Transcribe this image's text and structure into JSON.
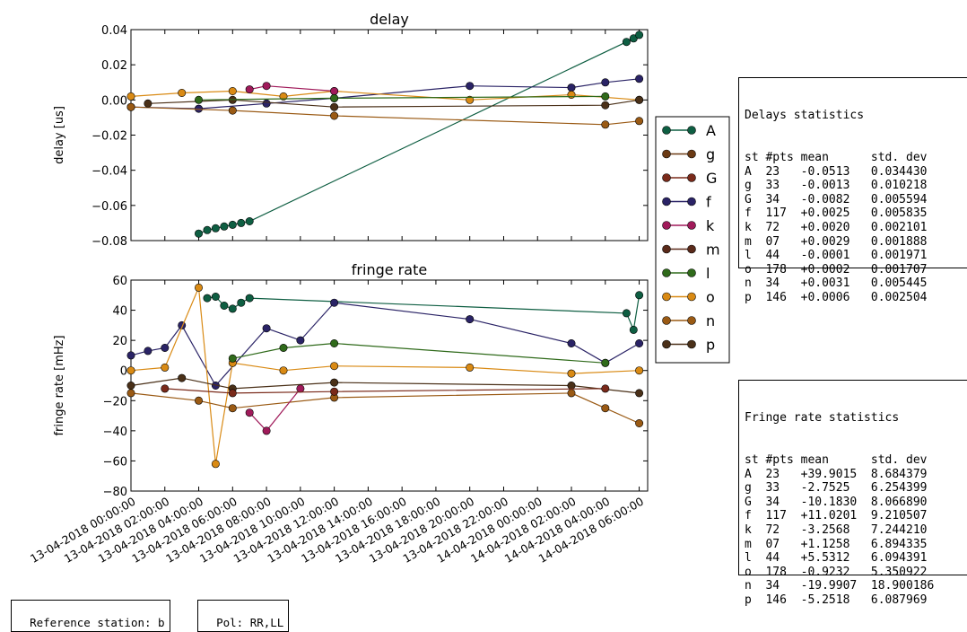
{
  "colors": {
    "A": "#0e5e42",
    "g": "#6b3a14",
    "G": "#7a2a1a",
    "f": "#2a2366",
    "k": "#a01a5a",
    "m": "#5a2a1a",
    "l": "#2f6a1a",
    "o": "#d98a14",
    "n": "#9a5a14",
    "p": "#4a3018"
  },
  "chart_data": [
    {
      "type": "line",
      "title": "delay",
      "ylabel": "delay [us]",
      "ylim": [
        -0.08,
        0.04
      ],
      "yticks": [
        "0.04",
        "0.02",
        "0.00",
        "−0.02",
        "−0.04",
        "−0.06",
        "−0.08"
      ],
      "series": [
        {
          "name": "A",
          "x": [
            "13-04-2018 04:00",
            "13-04-2018 04:30",
            "13-04-2018 05:00",
            "13-04-2018 05:30",
            "13-04-2018 06:00",
            "13-04-2018 06:30",
            "13-04-2018 07:00",
            "14-04-2018 05:15",
            "14-04-2018 05:40",
            "14-04-2018 06:00"
          ],
          "y": [
            -0.076,
            -0.074,
            -0.073,
            -0.072,
            -0.071,
            -0.07,
            -0.069,
            0.033,
            0.035,
            0.037
          ]
        },
        {
          "name": "f",
          "x": [
            "13-04-2018 00:00",
            "13-04-2018 04:00",
            "13-04-2018 08:00",
            "13-04-2018 12:00",
            "13-04-2018 20:00",
            "14-04-2018 02:00",
            "14-04-2018 04:00",
            "14-04-2018 06:00"
          ],
          "y": [
            -0.004,
            -0.005,
            -0.002,
            0.001,
            0.008,
            0.007,
            0.01,
            0.012
          ]
        },
        {
          "name": "o",
          "x": [
            "13-04-2018 00:00",
            "13-04-2018 03:00",
            "13-04-2018 06:00",
            "13-04-2018 09:00",
            "13-04-2018 12:00",
            "13-04-2018 20:00",
            "14-04-2018 02:00",
            "14-04-2018 06:00"
          ],
          "y": [
            0.002,
            0.004,
            0.005,
            0.002,
            0.005,
            0.0,
            0.003,
            0.0
          ]
        },
        {
          "name": "n",
          "x": [
            "13-04-2018 00:00",
            "13-04-2018 06:00",
            "13-04-2018 12:00",
            "14-04-2018 04:00",
            "14-04-2018 06:00"
          ],
          "y": [
            -0.004,
            -0.006,
            -0.009,
            -0.014,
            -0.012
          ]
        },
        {
          "name": "p",
          "x": [
            "13-04-2018 01:00",
            "13-04-2018 06:00",
            "13-04-2018 12:00",
            "14-04-2018 04:00",
            "14-04-2018 06:00"
          ],
          "y": [
            -0.002,
            0.0,
            -0.004,
            -0.003,
            0.0
          ]
        },
        {
          "name": "k",
          "x": [
            "13-04-2018 07:00",
            "13-04-2018 08:00",
            "13-04-2018 12:00"
          ],
          "y": [
            0.006,
            0.008,
            0.005
          ]
        },
        {
          "name": "l",
          "x": [
            "13-04-2018 04:00",
            "13-04-2018 12:00",
            "14-04-2018 04:00"
          ],
          "y": [
            0.0,
            0.001,
            0.002
          ]
        }
      ]
    },
    {
      "type": "line",
      "title": "fringe rate",
      "ylabel": "fringe rate [mHz]",
      "ylim": [
        -80,
        60
      ],
      "yticks": [
        "60",
        "40",
        "20",
        "0",
        "−20",
        "−40",
        "−60",
        "−80"
      ],
      "series": [
        {
          "name": "A",
          "x": [
            "13-04-2018 04:30",
            "13-04-2018 05:00",
            "13-04-2018 05:30",
            "13-04-2018 06:00",
            "13-04-2018 06:30",
            "13-04-2018 07:00",
            "14-04-2018 05:15",
            "14-04-2018 05:40",
            "14-04-2018 06:00"
          ],
          "y": [
            48,
            49,
            43,
            41,
            45,
            48,
            38,
            27,
            50
          ]
        },
        {
          "name": "f",
          "x": [
            "13-04-2018 00:00",
            "13-04-2018 01:00",
            "13-04-2018 02:00",
            "13-04-2018 03:00",
            "13-04-2018 05:00",
            "13-04-2018 08:00",
            "13-04-2018 10:00",
            "13-04-2018 12:00",
            "13-04-2018 20:00",
            "14-04-2018 02:00",
            "14-04-2018 04:00",
            "14-04-2018 06:00"
          ],
          "y": [
            10,
            13,
            15,
            30,
            -10,
            28,
            20,
            45,
            34,
            18,
            5,
            18
          ]
        },
        {
          "name": "o",
          "x": [
            "13-04-2018 00:00",
            "13-04-2018 02:00",
            "13-04-2018 04:00",
            "13-04-2018 05:00",
            "13-04-2018 06:00",
            "13-04-2018 09:00",
            "13-04-2018 12:00",
            "13-04-2018 20:00",
            "14-04-2018 02:00",
            "14-04-2018 06:00"
          ],
          "y": [
            0,
            2,
            55,
            -62,
            5,
            0,
            3,
            2,
            -2,
            0
          ]
        },
        {
          "name": "n",
          "x": [
            "13-04-2018 00:00",
            "13-04-2018 04:00",
            "13-04-2018 06:00",
            "13-04-2018 12:00",
            "14-04-2018 02:00",
            "14-04-2018 04:00",
            "14-04-2018 06:00"
          ],
          "y": [
            -15,
            -20,
            -25,
            -18,
            -15,
            -25,
            -35
          ]
        },
        {
          "name": "p",
          "x": [
            "13-04-2018 00:00",
            "13-04-2018 03:00",
            "13-04-2018 06:00",
            "13-04-2018 12:00",
            "14-04-2018 02:00",
            "14-04-2018 06:00"
          ],
          "y": [
            -10,
            -5,
            -12,
            -8,
            -10,
            -15
          ]
        },
        {
          "name": "k",
          "x": [
            "13-04-2018 07:00",
            "13-04-2018 08:00",
            "13-04-2018 10:00"
          ],
          "y": [
            -28,
            -40,
            -12
          ]
        },
        {
          "name": "l",
          "x": [
            "13-04-2018 06:00",
            "13-04-2018 09:00",
            "13-04-2018 12:00",
            "14-04-2018 04:00"
          ],
          "y": [
            8,
            15,
            18,
            5
          ]
        },
        {
          "name": "G",
          "x": [
            "13-04-2018 02:00",
            "13-04-2018 06:00",
            "13-04-2018 12:00",
            "14-04-2018 04:00"
          ],
          "y": [
            -12,
            -15,
            -14,
            -12
          ]
        }
      ]
    }
  ],
  "x_axis": {
    "ticks": [
      "13-04-2018 00:00:00",
      "13-04-2018 02:00:00",
      "13-04-2018 04:00:00",
      "13-04-2018 06:00:00",
      "13-04-2018 08:00:00",
      "13-04-2018 10:00:00",
      "13-04-2018 12:00:00",
      "13-04-2018 14:00:00",
      "13-04-2018 16:00:00",
      "13-04-2018 18:00:00",
      "13-04-2018 20:00:00",
      "13-04-2018 22:00:00",
      "14-04-2018 00:00:00",
      "14-04-2018 02:00:00",
      "14-04-2018 04:00:00",
      "14-04-2018 06:00:00"
    ]
  },
  "legend": {
    "entries": [
      "A",
      "g",
      "G",
      "f",
      "k",
      "m",
      "l",
      "o",
      "n",
      "p"
    ],
    "placement": "right"
  },
  "delay_stats": {
    "title": "Delays statistics",
    "header": [
      "st",
      "#pts",
      "mean",
      "std. dev"
    ],
    "rows": [
      [
        "A",
        "23",
        "-0.0513",
        "0.034430"
      ],
      [
        "g",
        "33",
        "-0.0013",
        "0.010218"
      ],
      [
        "G",
        "34",
        "-0.0082",
        "0.005594"
      ],
      [
        "f",
        "117",
        "+0.0025",
        "0.005835"
      ],
      [
        "k",
        "72",
        "+0.0020",
        "0.002101"
      ],
      [
        "m",
        "07",
        "+0.0029",
        "0.001888"
      ],
      [
        "l",
        "44",
        "-0.0001",
        "0.001971"
      ],
      [
        "o",
        "178",
        "+0.0002",
        "0.001707"
      ],
      [
        "n",
        "34",
        "+0.0031",
        "0.005445"
      ],
      [
        "p",
        "146",
        "+0.0006",
        "0.002504"
      ]
    ]
  },
  "rate_stats": {
    "title": "Fringe rate statistics",
    "header": [
      "st",
      "#pts",
      "mean",
      "std. dev"
    ],
    "rows": [
      [
        "A",
        "23",
        "+39.9015",
        "8.684379"
      ],
      [
        "g",
        "33",
        "-2.7525",
        "6.254399"
      ],
      [
        "G",
        "34",
        "-10.1830",
        "8.066890"
      ],
      [
        "f",
        "117",
        "+11.0201",
        "9.210507"
      ],
      [
        "k",
        "72",
        "-3.2568",
        "7.244210"
      ],
      [
        "m",
        "07",
        "+1.1258",
        "6.894335"
      ],
      [
        "l",
        "44",
        "+5.5312",
        "6.094391"
      ],
      [
        "o",
        "178",
        "-0.9232",
        "5.350922"
      ],
      [
        "n",
        "34",
        "-19.9907",
        "18.900186"
      ],
      [
        "p",
        "146",
        "-5.2518",
        "6.087969"
      ]
    ]
  },
  "footer": {
    "reference": "Reference station: b",
    "pol": "Pol: RR,LL"
  }
}
